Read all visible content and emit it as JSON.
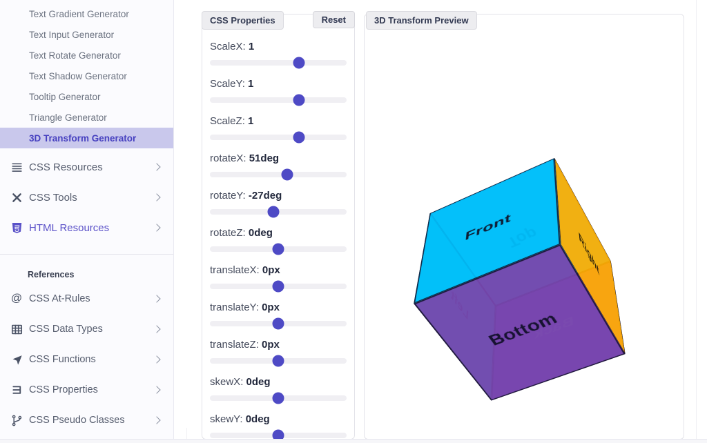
{
  "sidebar": {
    "generator_items": [
      {
        "label": "Text Gradient Generator",
        "active": false
      },
      {
        "label": "Text Input Generator",
        "active": false
      },
      {
        "label": "Text Rotate Generator",
        "active": false
      },
      {
        "label": "Text Shadow Generator",
        "active": false
      },
      {
        "label": "Tooltip Generator",
        "active": false
      },
      {
        "label": "Triangle Generator",
        "active": false
      },
      {
        "label": "3D Transform Generator",
        "active": true
      }
    ],
    "sections": [
      {
        "label": "CSS Resources",
        "icon": "list-icon",
        "accent": false
      },
      {
        "label": "CSS Tools",
        "icon": "tools-icon",
        "accent": false
      },
      {
        "label": "HTML Resources",
        "icon": "html5-icon",
        "accent": true
      }
    ],
    "references_heading": "References",
    "reference_items": [
      {
        "label": "CSS At-Rules",
        "icon": "at-icon"
      },
      {
        "label": "CSS Data Types",
        "icon": "table-icon"
      },
      {
        "label": "CSS Functions",
        "icon": "function-icon"
      },
      {
        "label": "CSS Properties",
        "icon": "css3-icon"
      },
      {
        "label": "CSS Pseudo Classes",
        "icon": "branch-icon"
      }
    ]
  },
  "properties_panel": {
    "title": "CSS Properties",
    "reset_label": "Reset",
    "sliders": [
      {
        "name": "ScaleX",
        "value": "1",
        "pct": 65.2
      },
      {
        "name": "ScaleY",
        "value": "1",
        "pct": 65.2
      },
      {
        "name": "ScaleZ",
        "value": "1",
        "pct": 65.2
      },
      {
        "name": "rotateX",
        "value": "51deg",
        "pct": 56.4
      },
      {
        "name": "rotateY",
        "value": "-27deg",
        "pct": 46.6
      },
      {
        "name": "rotateZ",
        "value": "0deg",
        "pct": 50
      },
      {
        "name": "translateX",
        "value": "0px",
        "pct": 50
      },
      {
        "name": "translateY",
        "value": "0px",
        "pct": 50
      },
      {
        "name": "translateZ",
        "value": "0px",
        "pct": 50
      },
      {
        "name": "skewX",
        "value": "0deg",
        "pct": 50
      },
      {
        "name": "skewY",
        "value": "0deg",
        "pct": 50
      }
    ]
  },
  "preview_panel": {
    "title": "3D Transform Preview",
    "transform": "scaleX(1) scaleY(1) scaleZ(1) rotateX(51deg) rotateY(-27deg) rotateZ(0deg) translateX(0px) translateY(0px) translateZ(0px) skewX(0deg) skewY(0deg)",
    "faces": [
      {
        "name": "front",
        "label": "Front",
        "color": "rgba(0,188,250,0.93)",
        "label_color": "#0e1b33"
      },
      {
        "name": "back",
        "label": "Back",
        "color": "rgba(130,62,212,0.88)",
        "label_color": "#bcaae8"
      },
      {
        "name": "right",
        "label": "Right",
        "color": "rgba(255,171,0,0.93)",
        "label_color": "#33260b"
      },
      {
        "name": "left",
        "label": "Left",
        "color": "rgba(0,238,238,0.92)",
        "label_color": "#155a68"
      },
      {
        "name": "top",
        "label": "Top",
        "color": "rgba(0,225,252,0.8)",
        "label_color": "#0c6279"
      },
      {
        "name": "bottom",
        "label": "Bottom",
        "color": "rgba(118,68,172,0.95)",
        "label_color": "#171231"
      }
    ]
  },
  "colors": {
    "accent": "#4741C0",
    "active_item_bg": "#C9C8EC",
    "slider_thumb": "#4E4AC5",
    "face_front": "#00bcfa",
    "face_right": "#ffab00",
    "face_left": "#00eeee",
    "face_bottom": "#7644ac"
  }
}
